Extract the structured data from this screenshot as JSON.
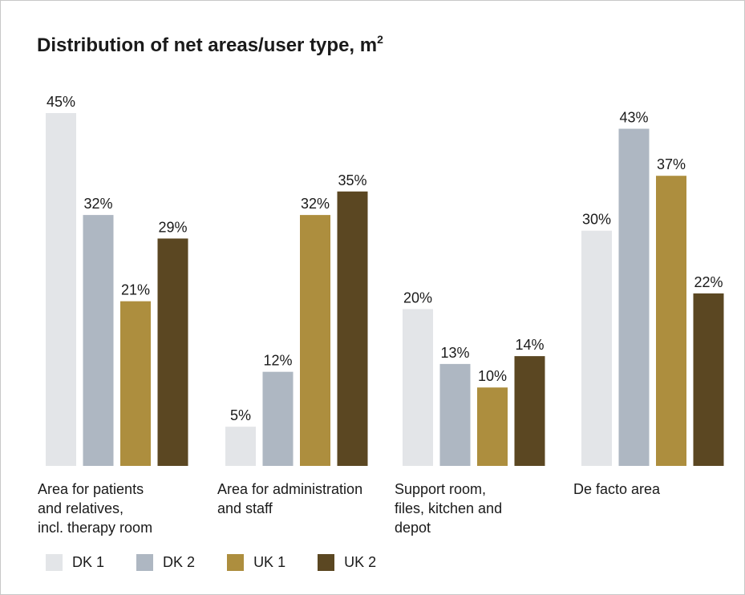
{
  "chart_data": {
    "type": "bar",
    "title": "Distribution of net areas/user type, m",
    "title_superscript": "2",
    "categories": [
      [
        "Area for patients",
        "and relatives,",
        "incl. therapy room"
      ],
      [
        "Area for administration",
        "and staff"
      ],
      [
        "Support room,",
        "files, kitchen and",
        "depot"
      ],
      [
        "De facto area"
      ]
    ],
    "series": [
      {
        "name": "DK 1",
        "color": "#e3e5e8",
        "values": [
          45,
          5,
          20,
          30
        ]
      },
      {
        "name": "DK 2",
        "color": "#aeb7c2",
        "values": [
          32,
          12,
          13,
          43
        ]
      },
      {
        "name": "UK 1",
        "color": "#ad8e3e",
        "values": [
          21,
          32,
          10,
          37
        ]
      },
      {
        "name": "UK 2",
        "color": "#5b4722",
        "values": [
          29,
          35,
          14,
          22
        ]
      }
    ],
    "value_suffix": "%",
    "ylim": [
      0,
      45
    ],
    "grid": false,
    "legend_position": "bottom-left"
  }
}
